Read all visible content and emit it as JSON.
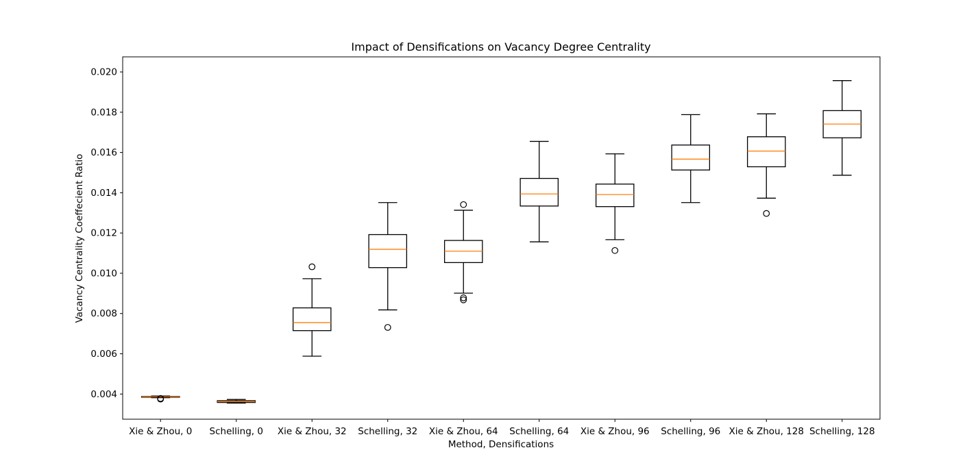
{
  "chart_data": {
    "type": "box",
    "title": "Impact of Densifications on Vacancy Degree Centrality",
    "xlabel": "Method, Densifications",
    "ylabel": "Vacancy Centrality Coeffecient Ratio",
    "ylim": [
      0.00275,
      0.02075
    ],
    "yticks": [
      "0.004",
      "0.006",
      "0.008",
      "0.010",
      "0.012",
      "0.014",
      "0.016",
      "0.018",
      "0.020"
    ],
    "ytick_values": [
      0.004,
      0.006,
      0.008,
      0.01,
      0.012,
      0.014,
      0.016,
      0.018,
      0.02
    ],
    "grid": false,
    "legend": "none",
    "box_color": "#000000",
    "median_color": "#ff7f0e",
    "categories": [
      "Xie & Zhou, 0",
      "Schelling, 0",
      "Xie & Zhou, 32",
      "Schelling, 32",
      "Xie & Zhou, 64",
      "Schelling, 64",
      "Xie & Zhou, 96",
      "Schelling, 96",
      "Xie & Zhou, 128",
      "Schelling, 128"
    ],
    "boxes": [
      {
        "whislo": 0.00382,
        "q1": 0.00384,
        "med": 0.00386,
        "q3": 0.00388,
        "whishi": 0.0039,
        "fliers": [
          0.00375,
          0.00378
        ]
      },
      {
        "whislo": 0.00355,
        "q1": 0.00358,
        "med": 0.00362,
        "q3": 0.00367,
        "whishi": 0.00373,
        "fliers": []
      },
      {
        "whislo": 0.00588,
        "q1": 0.00715,
        "med": 0.00755,
        "q3": 0.00828,
        "whishi": 0.00973,
        "fliers": [
          0.01032
        ]
      },
      {
        "whislo": 0.00818,
        "q1": 0.01028,
        "med": 0.01119,
        "q3": 0.01192,
        "whishi": 0.01351,
        "fliers": [
          0.00731
        ]
      },
      {
        "whislo": 0.00901,
        "q1": 0.01053,
        "med": 0.0111,
        "q3": 0.01163,
        "whishi": 0.01313,
        "fliers": [
          0.01341,
          0.00878,
          0.00868
        ]
      },
      {
        "whislo": 0.01156,
        "q1": 0.01334,
        "med": 0.01394,
        "q3": 0.01471,
        "whishi": 0.01655,
        "fliers": []
      },
      {
        "whislo": 0.01167,
        "q1": 0.01331,
        "med": 0.01391,
        "q3": 0.01443,
        "whishi": 0.01593,
        "fliers": [
          0.01113
        ]
      },
      {
        "whislo": 0.01351,
        "q1": 0.01513,
        "med": 0.01567,
        "q3": 0.01637,
        "whishi": 0.01788,
        "fliers": []
      },
      {
        "whislo": 0.01373,
        "q1": 0.01529,
        "med": 0.01607,
        "q3": 0.01678,
        "whishi": 0.01792,
        "fliers": [
          0.01297
        ]
      },
      {
        "whislo": 0.01487,
        "q1": 0.01673,
        "med": 0.01741,
        "q3": 0.01808,
        "whishi": 0.01957,
        "fliers": []
      }
    ]
  }
}
